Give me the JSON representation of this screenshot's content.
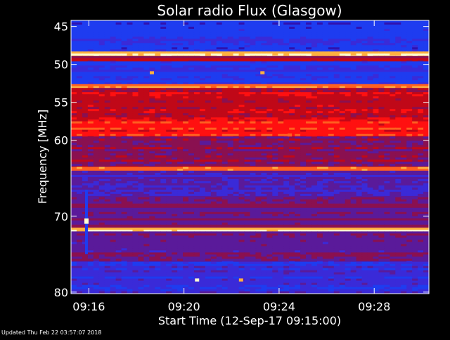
{
  "chart_data": {
    "type": "heatmap",
    "title": "Solar radio Flux (Glasgow)",
    "xlabel": "Start Time (12-Sep-17 09:15:00)",
    "ylabel_text": "Frequency ",
    "ylabel_unit": "[MHz]",
    "x_ticks": [
      "09:16",
      "09:20",
      "09:24",
      "09:28"
    ],
    "x_tick_minutes": [
      16,
      20,
      24,
      28
    ],
    "xlim_minutes": [
      15.25,
      30.3
    ],
    "y_ticks": [
      45,
      50,
      55,
      60,
      70,
      80
    ],
    "ylim": [
      44.2,
      80.2
    ],
    "colormap": [
      "#1a0f8c",
      "#2f12b0",
      "#1e3cf0",
      "#3a2ad8",
      "#5a1a9a",
      "#8a1050",
      "#c00818",
      "#ff1010",
      "#ff6020",
      "#ffb040",
      "#ffffd0"
    ],
    "frequency_bands": [
      {
        "from": 44.2,
        "to": 45.8,
        "level": 0.18
      },
      {
        "from": 45.8,
        "to": 48.3,
        "level": 0.22
      },
      {
        "from": 48.3,
        "to": 48.9,
        "level": 0.95
      },
      {
        "from": 48.9,
        "to": 49.6,
        "level": 0.55
      },
      {
        "from": 49.6,
        "to": 52.6,
        "level": 0.25
      },
      {
        "from": 52.6,
        "to": 53.1,
        "level": 0.82
      },
      {
        "from": 53.1,
        "to": 57.5,
        "level": 0.6
      },
      {
        "from": 57.5,
        "to": 59.5,
        "level": 0.7
      },
      {
        "from": 59.5,
        "to": 63.5,
        "level": 0.5
      },
      {
        "from": 63.5,
        "to": 64.0,
        "level": 0.85
      },
      {
        "from": 64.0,
        "to": 67.5,
        "level": 0.35
      },
      {
        "from": 67.5,
        "to": 71.5,
        "level": 0.45
      },
      {
        "from": 71.5,
        "to": 72.0,
        "level": 0.95
      },
      {
        "from": 72.0,
        "to": 76.0,
        "level": 0.42
      },
      {
        "from": 76.0,
        "to": 80.2,
        "level": 0.28
      }
    ],
    "bursts": [
      {
        "minute": 15.9,
        "freq_from": 66.5,
        "freq_to": 75.0,
        "level": 0.15
      },
      {
        "minute": 15.9,
        "freq_from": 70.3,
        "freq_to": 71.0,
        "level": 1.0
      },
      {
        "minute": 18.65,
        "freq_from": 50.9,
        "freq_to": 51.3,
        "level": 0.85
      },
      {
        "minute": 23.3,
        "freq_from": 50.9,
        "freq_to": 51.3,
        "level": 0.9
      },
      {
        "minute": 20.55,
        "freq_from": 78.2,
        "freq_to": 78.6,
        "level": 0.95
      },
      {
        "minute": 22.4,
        "freq_from": 78.2,
        "freq_to": 78.6,
        "level": 0.9
      },
      {
        "minute": 24.45,
        "freq_from": 59.1,
        "freq_to": 59.5,
        "level": 0.8
      }
    ]
  },
  "footer": {
    "updated_text": "Updated Thu Feb 22 03:57:07 2018"
  }
}
